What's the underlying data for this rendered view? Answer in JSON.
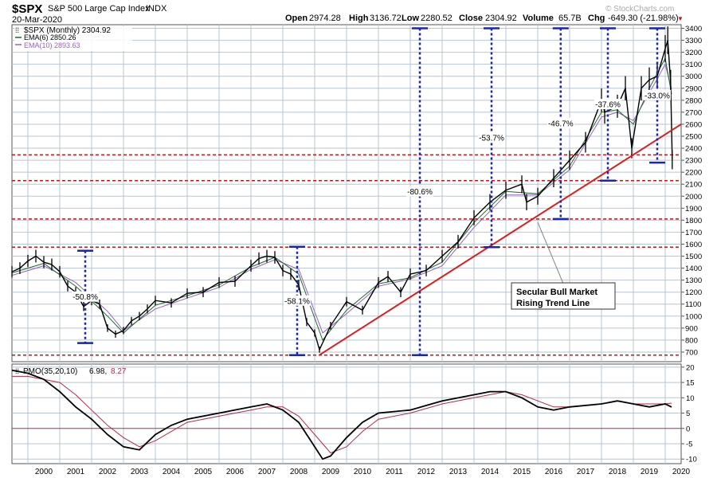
{
  "header": {
    "symbol": "$SPX",
    "name": "S&P 500 Large Cap Index",
    "exchange": "INDX",
    "date": "20-Mar-2020",
    "open_label": "Open",
    "open": "2974.28",
    "high_label": "High",
    "high": "3136.72",
    "low_label": "Low",
    "low": "2280.52",
    "close_label": "Close",
    "close": "2304.92",
    "volume_label": "Volume",
    "volume": "65.7B",
    "chg_label": "Chg",
    "chg": "-649.30 (-21.98%)",
    "chg_arrow": "▼",
    "watermark": "© StockCharts.com"
  },
  "legend": {
    "main": "$SPX (Monthly) 2304.92",
    "ema6": "EMA(6) 2850.26",
    "ema10": "EMA(10) 2893.63",
    "pmo_name": "PMO(35,20,10)",
    "pmo_val1": "6.98,",
    "pmo_val2": "8.27"
  },
  "colors": {
    "grid": "#b7c4d4",
    "price": "#000000",
    "ema6": "#1f6b2a",
    "ema10": "#9a5fc4",
    "trendline": "#e01b1b",
    "support": "#cc1111",
    "decline": "#1b26b0",
    "pmo_signal": "#b52b4a"
  },
  "annotation": {
    "line1": "Secular Bull Market",
    "line2": "Rising Trend Line"
  },
  "chart_data": [
    {
      "type": "line",
      "title": "$SPX (Monthly)",
      "xlim": [
        1999.5,
        2020.5
      ],
      "ylim": [
        620,
        3430
      ],
      "x_ticks": [
        "2000",
        "2001",
        "2002",
        "2003",
        "2004",
        "2005",
        "2006",
        "2007",
        "2008",
        "2009",
        "2010",
        "2011",
        "2012",
        "2013",
        "2014",
        "2015",
        "2016",
        "2017",
        "2018",
        "2019",
        "2020"
      ],
      "y_ticks": [
        700,
        800,
        900,
        1000,
        1100,
        1200,
        1300,
        1400,
        1500,
        1600,
        1700,
        1800,
        1900,
        2000,
        2100,
        2200,
        2300,
        2400,
        2500,
        2600,
        2700,
        2800,
        2900,
        3000,
        3100,
        3200,
        3300,
        3400
      ],
      "series": [
        {
          "name": "$SPX (Monthly)",
          "x": [
            1999.5,
            1999.75,
            2000.0,
            2000.25,
            2000.5,
            2000.75,
            2001.0,
            2001.25,
            2001.5,
            2001.75,
            2002.0,
            2002.25,
            2002.5,
            2002.75,
            2003.0,
            2003.25,
            2003.5,
            2003.75,
            2004.0,
            2004.5,
            2005.0,
            2005.5,
            2006.0,
            2006.5,
            2007.0,
            2007.25,
            2007.5,
            2007.75,
            2008.0,
            2008.25,
            2008.5,
            2008.75,
            2009.0,
            2009.15,
            2009.5,
            2010.0,
            2010.5,
            2011.0,
            2011.3,
            2011.7,
            2012.0,
            2012.5,
            2013.0,
            2013.5,
            2014.0,
            2014.5,
            2015.0,
            2015.5,
            2015.65,
            2016.0,
            2016.5,
            2017.0,
            2017.5,
            2018.0,
            2018.1,
            2018.5,
            2018.75,
            2018.95,
            2019.25,
            2019.5,
            2019.75,
            2020.0,
            2020.08,
            2020.17,
            2020.22
          ],
          "values": [
            1370,
            1400,
            1460,
            1500,
            1450,
            1430,
            1370,
            1250,
            1200,
            1080,
            1130,
            1100,
            900,
            850,
            880,
            960,
            1000,
            1060,
            1130,
            1110,
            1190,
            1200,
            1280,
            1290,
            1420,
            1480,
            1500,
            1490,
            1380,
            1350,
            1260,
            950,
            860,
            720,
            920,
            1120,
            1050,
            1280,
            1330,
            1200,
            1350,
            1380,
            1500,
            1620,
            1820,
            1950,
            2050,
            2100,
            1950,
            2000,
            2150,
            2300,
            2450,
            2800,
            2700,
            2750,
            2900,
            2400,
            2900,
            2970,
            3000,
            3230,
            3300,
            2950,
            2304.92
          ]
        },
        {
          "name": "EMA(6)",
          "x": [
            1999.5,
            2000.5,
            2001.5,
            2002.5,
            2003.0,
            2004.0,
            2005.0,
            2006.0,
            2007.0,
            2007.75,
            2008.5,
            2009.25,
            2010.0,
            2011.0,
            2012.0,
            2013.0,
            2014.0,
            2015.0,
            2016.0,
            2017.0,
            2018.0,
            2018.5,
            2019.0,
            2019.5,
            2020.0,
            2020.2
          ],
          "values": [
            1360,
            1440,
            1250,
            1000,
            860,
            1090,
            1170,
            1260,
            1410,
            1490,
            1350,
            800,
            1050,
            1270,
            1320,
            1450,
            1780,
            2040,
            2020,
            2250,
            2700,
            2720,
            2600,
            2900,
            3150,
            2850.26
          ]
        },
        {
          "name": "EMA(10)",
          "x": [
            1999.5,
            2000.5,
            2001.5,
            2002.5,
            2003.0,
            2004.0,
            2005.0,
            2006.0,
            2007.0,
            2007.75,
            2008.5,
            2009.25,
            2010.0,
            2011.0,
            2012.0,
            2013.0,
            2014.0,
            2015.0,
            2016.0,
            2017.0,
            2018.0,
            2018.5,
            2019.0,
            2019.5,
            2020.0,
            2020.2
          ],
          "values": [
            1340,
            1420,
            1280,
            1040,
            880,
            1060,
            1150,
            1240,
            1390,
            1470,
            1390,
            860,
            1020,
            1250,
            1310,
            1420,
            1740,
            2010,
            2010,
            2220,
            2660,
            2700,
            2630,
            2860,
            3100,
            2893.63
          ]
        }
      ],
      "support_levels": [
        675,
        1575,
        1810,
        2130,
        2345
      ],
      "trendline": [
        [
          2009.15,
          676
        ],
        [
          2020.5,
          2600
        ]
      ],
      "declines": [
        {
          "x": 2001.8,
          "low": 775,
          "high": 1545,
          "label": "-50.8%"
        },
        {
          "x": 2008.45,
          "low": 675,
          "high": 1578,
          "label": "-58.1%"
        },
        {
          "x": 2012.3,
          "low": 675,
          "high": 3400,
          "label": "-80.6%"
        },
        {
          "x": 2014.55,
          "low": 1575,
          "high": 3400,
          "label": "-53.7%"
        },
        {
          "x": 2016.72,
          "low": 1810,
          "high": 3400,
          "label": "-46.7%"
        },
        {
          "x": 2018.2,
          "low": 2130,
          "high": 3400,
          "label": "-37.6%"
        },
        {
          "x": 2019.75,
          "low": 2280,
          "high": 3400,
          "label": "-33.0%"
        }
      ]
    },
    {
      "type": "line",
      "title": "PMO(35,20,10)",
      "xlim": [
        1999.5,
        2020.5
      ],
      "ylim": [
        -11.5,
        21
      ],
      "y_ticks": [
        -10,
        -5,
        0,
        5,
        10,
        15,
        20
      ],
      "series": [
        {
          "name": "PMO",
          "x": [
            1999.5,
            2000.0,
            2000.5,
            2001.0,
            2001.5,
            2002.0,
            2002.5,
            2003.0,
            2003.5,
            2004.0,
            2004.5,
            2005.0,
            2006.0,
            2007.0,
            2007.5,
            2008.0,
            2008.5,
            2009.0,
            2009.25,
            2009.5,
            2010.0,
            2010.5,
            2011.0,
            2012.0,
            2013.0,
            2014.0,
            2014.5,
            2015.0,
            2015.5,
            2016.0,
            2016.5,
            2017.0,
            2018.0,
            2018.5,
            2019.0,
            2019.5,
            2020.0,
            2020.2
          ],
          "values": [
            19,
            18,
            16,
            12,
            7,
            3,
            -2,
            -6,
            -7,
            -2,
            1,
            3,
            5,
            7,
            8,
            6,
            2,
            -6,
            -10,
            -9,
            -3,
            2,
            5,
            6,
            9,
            11,
            12,
            12,
            10,
            7,
            6,
            7,
            8,
            9,
            8,
            7,
            8,
            6.98
          ]
        },
        {
          "name": "Signal",
          "x": [
            1999.5,
            2000.0,
            2000.5,
            2001.0,
            2001.5,
            2002.0,
            2002.5,
            2003.0,
            2003.5,
            2004.0,
            2004.5,
            2005.0,
            2006.0,
            2007.0,
            2007.5,
            2008.0,
            2008.5,
            2009.0,
            2009.5,
            2010.0,
            2010.5,
            2011.0,
            2012.0,
            2013.0,
            2014.0,
            2015.0,
            2015.5,
            2016.0,
            2016.5,
            2017.0,
            2018.0,
            2018.5,
            2019.0,
            2019.5,
            2020.0,
            2020.2
          ],
          "values": [
            17,
            17,
            16,
            15,
            11,
            6,
            1,
            -3,
            -6,
            -4,
            -1,
            2,
            4,
            6,
            7,
            7,
            4,
            -2,
            -8,
            -6,
            -1,
            3,
            5,
            8,
            10,
            12,
            11,
            9,
            7,
            7,
            8,
            9,
            8,
            8,
            8,
            8.27
          ]
        }
      ]
    }
  ]
}
